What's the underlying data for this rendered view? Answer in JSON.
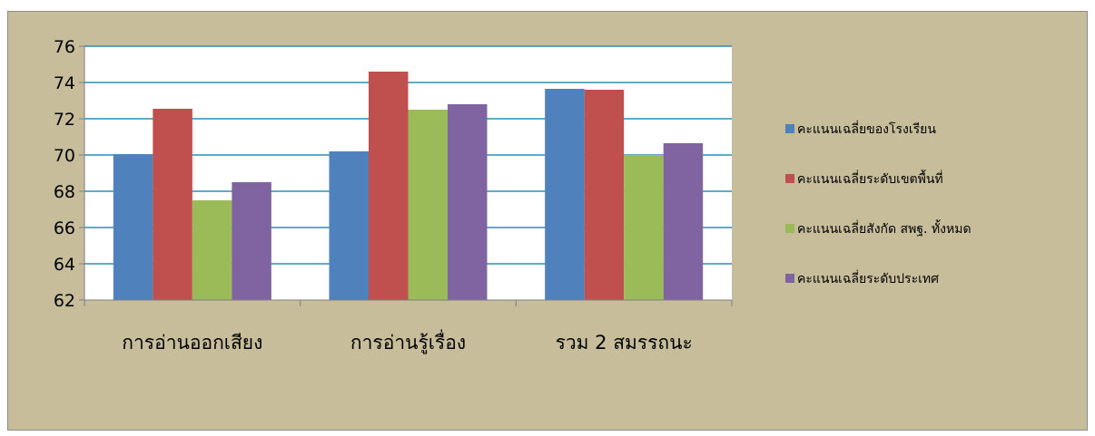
{
  "chart_data": {
    "type": "bar",
    "title": "",
    "xlabel": "",
    "ylabel": "",
    "ylim": [
      62,
      76
    ],
    "yticks": [
      62,
      64,
      66,
      68,
      70,
      72,
      74,
      76
    ],
    "grid": true,
    "legend_position": "right",
    "categories": [
      "การอ่านออกเสียง",
      "การอ่านรู้เรื่อง",
      "รวม 2 สมรรถนะ"
    ],
    "series": [
      {
        "name": "คะแนนเฉลี่ยของโรงเรียน",
        "color": "#4f81bd",
        "values": [
          70.05,
          70.2,
          73.65
        ]
      },
      {
        "name": "คะแนนเฉลี่ยระดับเขตพื้นที่",
        "color": "#c0504d",
        "values": [
          72.55,
          74.6,
          73.6
        ]
      },
      {
        "name": "คะแนนเฉลี่ยสังกัด สพฐ. ทั้งหมด",
        "color": "#9bbb59",
        "values": [
          67.5,
          72.5,
          70.0
        ]
      },
      {
        "name": "คะแนนเฉลี่ยระดับประเทศ",
        "color": "#8064a2",
        "values": [
          68.5,
          72.8,
          70.65
        ]
      }
    ],
    "plot_background": "#ffffff",
    "chart_background": "#c7bd9b",
    "gridline_color": "#2f8fb5"
  }
}
